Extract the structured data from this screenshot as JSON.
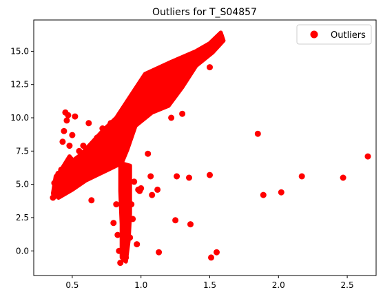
{
  "chart_data": {
    "type": "scatter",
    "title": "Outliers for T_S04857",
    "xlabel": "",
    "ylabel": "",
    "xlim": [
      0.22,
      2.71
    ],
    "ylim": [
      -1.85,
      17.35
    ],
    "xticks": [
      0.5,
      1.0,
      1.5,
      2.0,
      2.5
    ],
    "xtick_labels": [
      "0.5",
      "1.0",
      "1.5",
      "2.0",
      "2.5"
    ],
    "yticks": [
      0.0,
      2.5,
      5.0,
      7.5,
      10.0,
      12.5,
      15.0
    ],
    "ytick_labels": [
      "0.0",
      "2.5",
      "5.0",
      "7.5",
      "10.0",
      "12.5",
      "15.0"
    ],
    "grid": false,
    "legend": {
      "position": "top-right",
      "entries": [
        "Outliers"
      ]
    },
    "series": [
      {
        "name": "Outliers",
        "color": "#ff0000",
        "points": [
          [
            0.36,
            4.0
          ],
          [
            0.37,
            4.4
          ],
          [
            0.37,
            5.1
          ],
          [
            0.4,
            4.5
          ],
          [
            0.4,
            5.8
          ],
          [
            0.42,
            6.1
          ],
          [
            0.43,
            8.2
          ],
          [
            0.44,
            9.0
          ],
          [
            0.45,
            10.4
          ],
          [
            0.46,
            9.8
          ],
          [
            0.47,
            10.2
          ],
          [
            0.48,
            7.9
          ],
          [
            0.5,
            8.7
          ],
          [
            0.52,
            10.1
          ],
          [
            0.55,
            7.5
          ],
          [
            0.58,
            7.9
          ],
          [
            0.62,
            9.6
          ],
          [
            0.64,
            3.8
          ],
          [
            0.68,
            8.5
          ],
          [
            0.72,
            9.2
          ],
          [
            0.75,
            8.0
          ],
          [
            0.78,
            9.6
          ],
          [
            0.8,
            2.1
          ],
          [
            0.82,
            3.5
          ],
          [
            0.83,
            1.2
          ],
          [
            0.84,
            0.0
          ],
          [
            0.85,
            -0.9
          ],
          [
            0.87,
            5.0
          ],
          [
            0.88,
            4.1
          ],
          [
            0.89,
            -0.5
          ],
          [
            0.9,
            3.3
          ],
          [
            0.92,
            1.0
          ],
          [
            0.93,
            3.5
          ],
          [
            0.94,
            2.4
          ],
          [
            0.95,
            5.2
          ],
          [
            0.97,
            0.5
          ],
          [
            0.98,
            4.6
          ],
          [
            0.99,
            4.5
          ],
          [
            1.0,
            4.7
          ],
          [
            1.05,
            7.3
          ],
          [
            1.07,
            5.6
          ],
          [
            1.08,
            4.2
          ],
          [
            1.12,
            4.6
          ],
          [
            1.13,
            -0.1
          ],
          [
            1.22,
            10.0
          ],
          [
            1.25,
            2.3
          ],
          [
            1.26,
            5.6
          ],
          [
            1.3,
            10.3
          ],
          [
            1.35,
            5.5
          ],
          [
            1.36,
            2.0
          ],
          [
            1.5,
            5.7
          ],
          [
            1.5,
            13.8
          ],
          [
            1.51,
            -0.5
          ],
          [
            1.55,
            -0.1
          ],
          [
            1.85,
            8.8
          ],
          [
            1.89,
            4.2
          ],
          [
            2.02,
            4.4
          ],
          [
            2.17,
            5.6
          ],
          [
            2.47,
            5.5
          ],
          [
            2.65,
            7.1
          ]
        ]
      }
    ]
  }
}
